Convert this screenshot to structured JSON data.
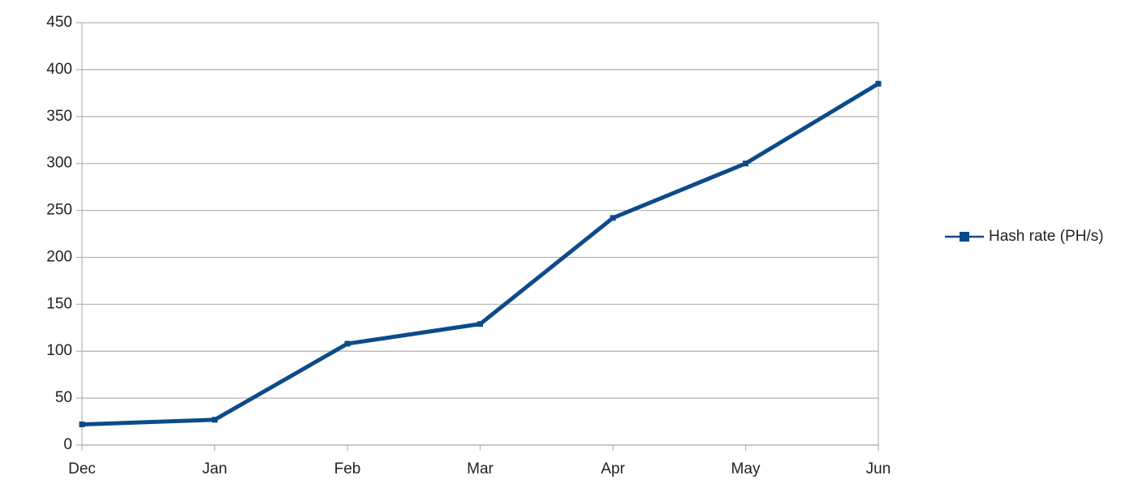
{
  "chart_data": {
    "type": "line",
    "categories": [
      "Dec",
      "Jan",
      "Feb",
      "Mar",
      "Apr",
      "May",
      "Jun"
    ],
    "series": [
      {
        "name": "Hash rate (PH/s)",
        "color": "#0d4a89",
        "values": [
          22,
          27,
          108,
          129,
          242,
          300,
          385
        ]
      }
    ],
    "ylim": [
      0,
      450
    ],
    "yticks": [
      0,
      50,
      100,
      150,
      200,
      250,
      300,
      350,
      400,
      450
    ],
    "grid": true,
    "legend": "right"
  }
}
